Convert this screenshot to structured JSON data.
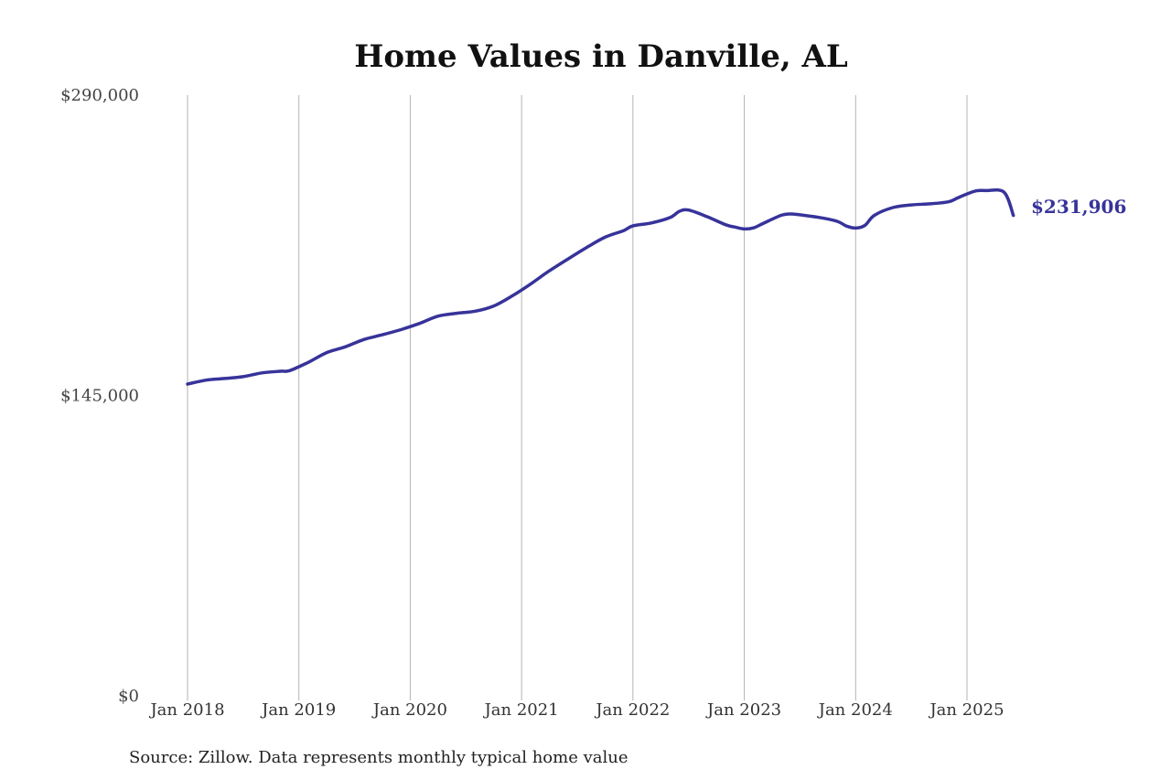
{
  "chart_data": {
    "type": "line",
    "title": "Home Values in Danville, AL",
    "xlabel": "",
    "ylabel": "",
    "ylim": [
      0,
      290000
    ],
    "y_ticks": [
      {
        "value": 0,
        "label": "$0"
      },
      {
        "value": 145000,
        "label": "$145,000"
      },
      {
        "value": 290000,
        "label": "$290,000"
      }
    ],
    "x_ticks": [
      {
        "value": "2018-01",
        "label": "Jan 2018"
      },
      {
        "value": "2019-01",
        "label": "Jan 2019"
      },
      {
        "value": "2020-01",
        "label": "Jan 2020"
      },
      {
        "value": "2021-01",
        "label": "Jan 2021"
      },
      {
        "value": "2022-01",
        "label": "Jan 2022"
      },
      {
        "value": "2023-01",
        "label": "Jan 2023"
      },
      {
        "value": "2024-01",
        "label": "Jan 2024"
      },
      {
        "value": "2025-01",
        "label": "Jan 2025"
      }
    ],
    "grid": "vertical",
    "line_color": "#37339a",
    "series": [
      {
        "x": [
          "2018-01",
          "2018-03",
          "2018-05",
          "2018-07",
          "2018-09",
          "2018-11",
          "2018-12",
          "2019-02",
          "2019-04",
          "2019-06",
          "2019-08",
          "2019-10",
          "2019-12",
          "2020-02",
          "2020-04",
          "2020-06",
          "2020-08",
          "2020-10",
          "2020-12",
          "2021-02",
          "2021-04",
          "2021-06",
          "2021-08",
          "2021-10",
          "2021-12",
          "2022-01",
          "2022-03",
          "2022-05",
          "2022-06",
          "2022-07",
          "2022-09",
          "2022-11",
          "2022-12",
          "2023-01",
          "2023-02",
          "2023-03",
          "2023-05",
          "2023-06",
          "2023-07",
          "2023-09",
          "2023-11",
          "2023-12",
          "2024-01",
          "2024-02",
          "2024-03",
          "2024-05",
          "2024-07",
          "2024-09",
          "2024-11",
          "2024-12",
          "2025-01",
          "2025-02",
          "2025-03",
          "2025-05",
          "2025-06"
        ],
        "values": [
          150500,
          152400,
          153200,
          154100,
          155900,
          156700,
          157000,
          161000,
          165700,
          168500,
          172000,
          174300,
          176800,
          179800,
          183300,
          184700,
          185700,
          188200,
          193100,
          198900,
          205200,
          210900,
          216400,
          221400,
          224600,
          226900,
          228300,
          230900,
          233900,
          234500,
          231300,
          227400,
          226300,
          225400,
          225900,
          228000,
          232000,
          232600,
          232200,
          231000,
          229100,
          226800,
          225800,
          227100,
          231900,
          235700,
          237000,
          237500,
          238500,
          240400,
          242300,
          243800,
          243900,
          243100,
          231906
        ],
        "end_label": "$231,906"
      }
    ]
  },
  "footer": {
    "source": "Source: Zillow. Data represents monthly typical home value"
  }
}
